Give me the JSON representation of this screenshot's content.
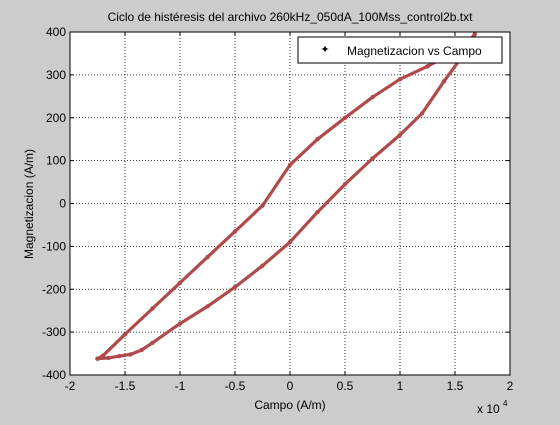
{
  "chart_data": {
    "type": "line",
    "title": "Ciclo de histéresis del archivo 260kHz_050dA_100Mss_control2b.txt",
    "xlabel": "Campo (A/m)",
    "ylabel": "Magnetizacion (A/m)",
    "x_multiplier_label": "x 10",
    "x_multiplier_exponent": "4",
    "xlim": [
      -20000,
      20000
    ],
    "ylim": [
      -400,
      400
    ],
    "xticks": [
      -20000,
      -15000,
      -10000,
      -5000,
      0,
      5000,
      10000,
      15000,
      20000
    ],
    "xtick_labels": [
      "-2",
      "-1.5",
      "-1",
      "-0.5",
      "0",
      "0.5",
      "1",
      "1.5",
      "2"
    ],
    "yticks": [
      -400,
      -300,
      -200,
      -100,
      0,
      100,
      200,
      300,
      400
    ],
    "ytick_labels": [
      "-400",
      "-300",
      "-200",
      "-100",
      "0",
      "100",
      "200",
      "300",
      "400"
    ],
    "grid": true,
    "legend_position": "top-right",
    "series": [
      {
        "name": "Magnetizacion vs Campo",
        "color": "#b04a4a",
        "marker": "dot",
        "x": [
          -17500,
          -17000,
          -15000,
          -12500,
          -10000,
          -7500,
          -5000,
          -2500,
          0,
          2500,
          5000,
          7500,
          10000,
          12500,
          15000,
          16500,
          16800,
          16000,
          14000,
          12000,
          10000,
          7500,
          5000,
          2500,
          0,
          -2500,
          -5000,
          -7500,
          -10000,
          -12500,
          -13500,
          -14500,
          -15500,
          -16500,
          -17500
        ],
        "y": [
          -362,
          -355,
          -305,
          -245,
          -185,
          -125,
          -65,
          -5,
          90,
          150,
          200,
          248,
          290,
          320,
          355,
          385,
          395,
          355,
          285,
          210,
          160,
          105,
          45,
          -20,
          -90,
          -145,
          -195,
          -240,
          -280,
          -325,
          -342,
          -352,
          -356,
          -360,
          -362
        ]
      }
    ]
  }
}
